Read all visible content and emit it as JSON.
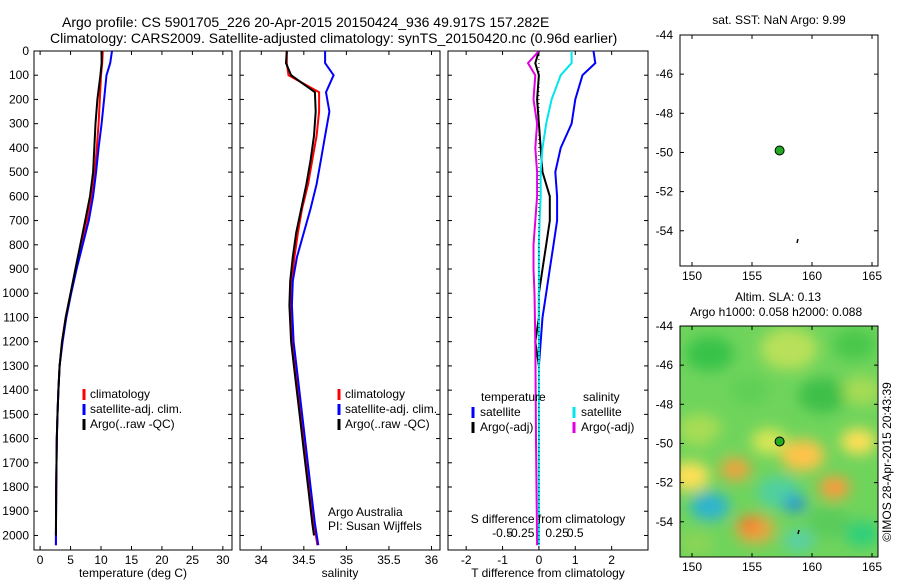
{
  "titles": {
    "line1": "Argo profile: CS 5901705_226 20-Apr-2015 20150424_936 49.917S 157.282E",
    "line2": "Climatology: CARS2009. Satellite-adjusted climatology: synTS_20150420.nc (0.96d earlier)"
  },
  "credit": "©IMOS 28-Apr-2015 20:43:39",
  "colors": {
    "climatology": "#ff0000",
    "satellite": "#0000ff",
    "argo": "#000000",
    "sal_satellite": "#00e5ee",
    "sal_argo": "#e000e0",
    "float_marker": "#22aa22"
  },
  "chart_data": [
    {
      "id": "temperature",
      "type": "line",
      "xlabel": "temperature (deg C)",
      "ylabel": "",
      "xlim": [
        -1,
        31.5
      ],
      "ylim": [
        2060,
        0
      ],
      "xticks": [
        0,
        5,
        10,
        15,
        20,
        25,
        30
      ],
      "yticks": [
        0,
        100,
        200,
        300,
        400,
        500,
        600,
        700,
        800,
        900,
        1000,
        1100,
        1200,
        1300,
        1400,
        1500,
        1600,
        1700,
        1800,
        1900,
        2000
      ],
      "legend": [
        "climatology",
        "satellite-adj. clim.",
        "Argo(..raw -QC)"
      ],
      "series": [
        {
          "name": "climatology",
          "color": "#ff0000",
          "x": [
            10.3,
            10.2,
            10.0,
            9.8,
            9.6,
            9.3,
            9.0,
            8.5,
            7.7,
            6.8,
            5.9,
            5.0,
            4.2,
            3.6,
            3.2,
            3.0,
            2.85,
            2.75,
            2.65,
            2.6
          ],
          "y": [
            0,
            50,
            100,
            200,
            300,
            400,
            500,
            600,
            700,
            800,
            900,
            1000,
            1100,
            1200,
            1300,
            1400,
            1500,
            1600,
            1800,
            2040
          ]
        },
        {
          "name": "satellite-adj. clim.",
          "color": "#0000ff",
          "x": [
            11.8,
            11.5,
            10.9,
            10.5,
            10.1,
            9.6,
            9.2,
            8.7,
            8.0,
            7.0,
            6.0,
            5.1,
            4.3,
            3.7,
            3.2,
            3.0,
            2.85,
            2.75,
            2.65,
            2.6
          ],
          "y": [
            0,
            50,
            100,
            200,
            300,
            400,
            500,
            600,
            700,
            800,
            900,
            1000,
            1100,
            1200,
            1300,
            1400,
            1500,
            1600,
            1800,
            2040
          ]
        },
        {
          "name": "Argo(..raw -QC)",
          "color": "#000000",
          "x": [
            10.1,
            10.1,
            9.9,
            9.4,
            9.1,
            8.9,
            8.7,
            8.2,
            7.4,
            6.6,
            5.8,
            5.0,
            4.2,
            3.6,
            3.2,
            3.0,
            2.85,
            2.75,
            2.65,
            2.6
          ],
          "y": [
            0,
            50,
            100,
            200,
            300,
            400,
            500,
            600,
            700,
            800,
            900,
            1000,
            1100,
            1200,
            1300,
            1400,
            1500,
            1600,
            1800,
            2000
          ]
        }
      ]
    },
    {
      "id": "salinity",
      "type": "line",
      "xlabel": "salinity",
      "ylabel": "",
      "xlim": [
        33.75,
        36.1
      ],
      "ylim": [
        2060,
        0
      ],
      "xticks": [
        34,
        34.5,
        35,
        35.5,
        36
      ],
      "xticklabels": [
        "34",
        "34.5",
        "35",
        "35.5",
        "36"
      ],
      "legend": [
        "climatology",
        "satellite-adj. clim.",
        "Argo(..raw -QC)"
      ],
      "annotation": [
        "Argo Australia",
        "PI: Susan Wijffels"
      ],
      "series": [
        {
          "name": "climatology",
          "color": "#ff0000",
          "x": [
            34.3,
            34.3,
            34.32,
            34.68,
            34.68,
            34.65,
            34.6,
            34.55,
            34.48,
            34.43,
            34.39,
            34.36,
            34.35,
            34.37,
            34.42,
            34.47,
            34.52,
            34.57,
            34.62,
            34.66
          ],
          "y": [
            0,
            50,
            100,
            170,
            250,
            350,
            450,
            550,
            650,
            750,
            850,
            950,
            1050,
            1200,
            1350,
            1500,
            1650,
            1800,
            1950,
            2040
          ]
        },
        {
          "name": "satellite-adj. clim.",
          "color": "#0000ff",
          "x": [
            34.75,
            34.75,
            34.85,
            34.76,
            34.8,
            34.75,
            34.7,
            34.65,
            34.58,
            34.5,
            34.42,
            34.37,
            34.36,
            34.38,
            34.43,
            34.48,
            34.53,
            34.58,
            34.63,
            34.67
          ],
          "y": [
            0,
            50,
            100,
            170,
            250,
            350,
            450,
            550,
            650,
            750,
            850,
            950,
            1050,
            1200,
            1350,
            1500,
            1650,
            1800,
            1950,
            2040
          ]
        },
        {
          "name": "Argo(..raw -QC)",
          "color": "#000000",
          "x": [
            34.3,
            34.29,
            34.35,
            34.63,
            34.64,
            34.62,
            34.58,
            34.53,
            34.47,
            34.41,
            34.37,
            34.34,
            34.33,
            34.35,
            34.4,
            34.45,
            34.5,
            34.55,
            34.6,
            34.62
          ],
          "y": [
            0,
            50,
            100,
            170,
            250,
            350,
            450,
            550,
            650,
            750,
            850,
            950,
            1050,
            1200,
            1350,
            1500,
            1650,
            1800,
            1950,
            2000
          ]
        }
      ]
    },
    {
      "id": "difference",
      "type": "line",
      "xlabel": "T difference from climatology",
      "xlabel_top": "S difference from climatology",
      "xlim": [
        -2.5,
        3.0
      ],
      "ylim": [
        2060,
        0
      ],
      "xticks": [
        -2,
        -1,
        0,
        1,
        2
      ],
      "xticklabels": [
        "-2",
        "-1",
        "0",
        "1",
        "2"
      ],
      "top_ticks": [
        -1.0,
        -0.5,
        0.5,
        1.0
      ],
      "top_ticklabels": [
        "-0.5",
        "-0.25",
        "0.25",
        "0.5"
      ],
      "legend_temperature": [
        "temperature",
        "satellite",
        "Argo(-adj)"
      ],
      "legend_salinity": [
        "salinity",
        "satellite",
        "Argo(-adj)"
      ],
      "series": [
        {
          "name": "satellite",
          "color": "#0000ff",
          "x": [
            1.5,
            1.55,
            1.2,
            1.0,
            0.9,
            0.6,
            0.45,
            0.5,
            0.5,
            0.4,
            0.3,
            0.2,
            0.1,
            0.05,
            0.0
          ],
          "y": [
            0,
            50,
            100,
            200,
            300,
            400,
            500,
            600,
            700,
            800,
            900,
            1000,
            1100,
            1200,
            1300
          ]
        },
        {
          "name": "Argo(-adj)",
          "color": "#000000",
          "x": [
            0.0,
            -0.1,
            0.0,
            -0.05,
            0.0,
            0.05,
            0.1,
            0.3,
            0.3,
            0.2,
            0.1,
            0.0,
            0.0,
            -0.1,
            0.0
          ],
          "y": [
            0,
            50,
            100,
            200,
            300,
            400,
            500,
            600,
            700,
            800,
            900,
            1000,
            1100,
            1200,
            1300
          ]
        },
        {
          "name": "salinity satellite",
          "color": "#00e5ee",
          "x": [
            0.9,
            0.9,
            0.6,
            0.35,
            0.2,
            0.1,
            0.05,
            0.05,
            0.02,
            0.0,
            0.0,
            0.0,
            0.0,
            0.0,
            0.0
          ],
          "y": [
            0,
            50,
            100,
            200,
            300,
            400,
            500,
            600,
            700,
            800,
            900,
            1000,
            1200,
            1600,
            2040
          ]
        },
        {
          "name": "salinity Argo(-adj)",
          "color": "#e000e0",
          "x": [
            0.0,
            -0.3,
            -0.1,
            -0.15,
            -0.05,
            -0.1,
            -0.05,
            -0.05,
            -0.1,
            -0.15,
            -0.15,
            -0.12,
            -0.1,
            -0.08,
            -0.05
          ],
          "y": [
            0,
            50,
            100,
            200,
            300,
            400,
            500,
            600,
            700,
            800,
            900,
            1000,
            1200,
            1600,
            2040
          ]
        }
      ]
    },
    {
      "id": "sst_map",
      "type": "scatter",
      "title": "sat. SST: NaN Argo: 9.99",
      "xlim": [
        149,
        165.5
      ],
      "ylim": [
        -55.8,
        -44
      ],
      "xticks": [
        150,
        155,
        160,
        165
      ],
      "yticks": [
        -44,
        -46,
        -48,
        -50,
        -52,
        -54
      ],
      "points": [
        {
          "x": 157.3,
          "y": -49.9
        }
      ]
    },
    {
      "id": "sla_map",
      "type": "heatmap",
      "title_line1": "Altim. SLA: 0.13",
      "title_line2": "Argo h1000: 0.058 h2000: 0.088",
      "xlim": [
        149,
        165.5
      ],
      "ylim": [
        -55.8,
        -44
      ],
      "xticks": [
        150,
        155,
        160,
        165
      ],
      "yticks": [
        -44,
        -46,
        -48,
        -50,
        -52,
        -54
      ],
      "points": [
        {
          "x": 157.3,
          "y": -49.9
        }
      ]
    }
  ]
}
